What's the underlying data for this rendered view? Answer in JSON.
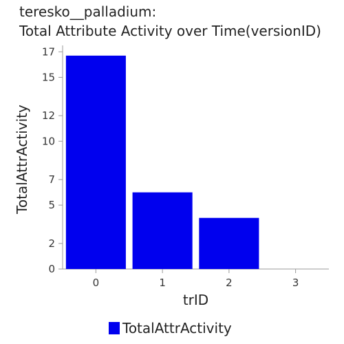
{
  "chart_data": {
    "type": "bar",
    "title": "teresko__palladium:",
    "subtitle": "Total Attribute Activity over Time(versionID)",
    "xlabel": "trID",
    "ylabel": "TotalAttrActivity",
    "categories": [
      "0",
      "1",
      "2",
      "3"
    ],
    "series": [
      {
        "name": "TotalAttrActivity",
        "values": [
          16.7,
          6,
          4,
          0
        ],
        "color": "#0000ee"
      }
    ],
    "yticks": [
      "0",
      "2",
      "5",
      "7",
      "10",
      "12",
      "15",
      "17"
    ],
    "ylim": [
      0,
      17.5
    ],
    "grid": false,
    "legend": "bottom"
  }
}
